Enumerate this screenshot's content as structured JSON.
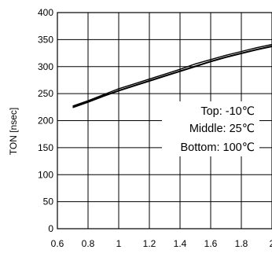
{
  "chart_data": {
    "type": "line",
    "title": "",
    "xlabel": "",
    "ylabel": "TON [nsec]",
    "xlim": [
      0.6,
      2.0
    ],
    "ylim": [
      0,
      400
    ],
    "x_ticks": [
      "0.6",
      "0.8",
      "1",
      "1.2",
      "1.4",
      "1.6",
      "1.8",
      "2"
    ],
    "y_ticks": [
      "0",
      "50",
      "100",
      "150",
      "200",
      "250",
      "300",
      "350",
      "400"
    ],
    "grid": true,
    "legend": {
      "placement": "center-right",
      "entries": [
        "Top: -10℃",
        "Middle: 25℃",
        "Bottom: 100℃"
      ]
    },
    "series": [
      {
        "x": [
          0.7,
          0.8,
          0.9,
          1.0,
          1.1,
          1.2,
          1.3,
          1.4,
          1.5,
          1.6,
          1.7,
          1.8,
          1.9,
          2.0
        ],
        "values": [
          227,
          237,
          248,
          259,
          268,
          277,
          286,
          295,
          305,
          313,
          321,
          328,
          335,
          341
        ]
      },
      {
        "x": [
          0.7,
          0.8,
          0.9,
          1.0,
          1.1,
          1.2,
          1.3,
          1.4,
          1.5,
          1.6,
          1.7,
          1.8,
          1.9,
          2.0
        ],
        "values": [
          225,
          235,
          246,
          256,
          265,
          274,
          283,
          292,
          301,
          310,
          318,
          325,
          332,
          338
        ]
      },
      {
        "x": [
          0.7,
          0.8,
          0.9,
          1.0,
          1.1,
          1.2,
          1.3,
          1.4,
          1.5,
          1.6,
          1.7,
          1.8,
          1.9,
          2.0
        ],
        "values": [
          224,
          234,
          245,
          255,
          264,
          273,
          282,
          291,
          300,
          309,
          317,
          324,
          331,
          337
        ]
      }
    ]
  }
}
